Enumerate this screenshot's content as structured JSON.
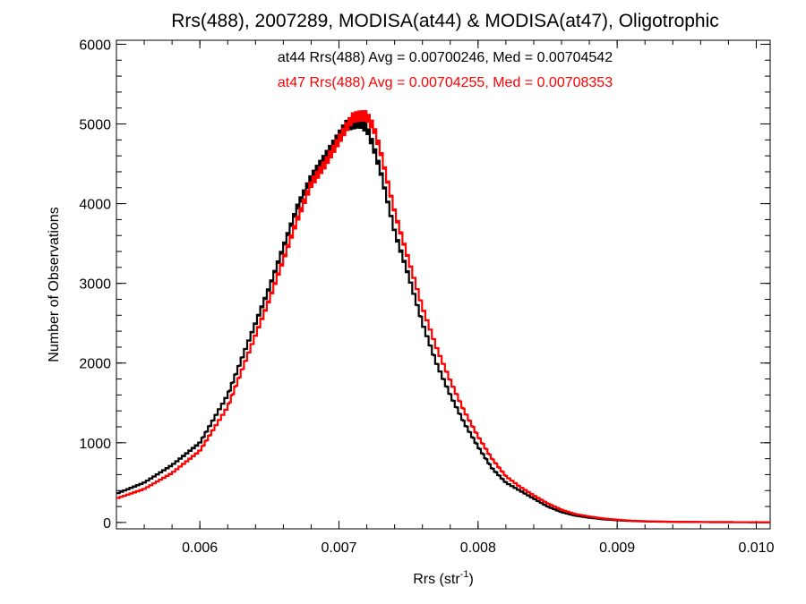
{
  "chart_data": {
    "type": "line",
    "title": "Rrs(488), 2007289, MODISA(at44) & MODISA(at47), Oligotrophic",
    "xlabel": "Rrs (str",
    "xlabel_sup": "-1",
    "xlabel_close": ")",
    "ylabel": "Number of Observations",
    "xlim": [
      0.0054,
      0.0101
    ],
    "ylim": [
      -80,
      6050
    ],
    "xticks": [
      0.006,
      0.007,
      0.008,
      0.009,
      0.01
    ],
    "xtick_labels": [
      "0.006",
      "0.007",
      "0.008",
      "0.009",
      "0.010"
    ],
    "yticks": [
      0,
      1000,
      2000,
      3000,
      4000,
      5000,
      6000
    ],
    "ytick_labels": [
      "0",
      "1000",
      "2000",
      "3000",
      "4000",
      "5000",
      "6000"
    ],
    "grid": false,
    "annotations": [
      {
        "text": "at44 Rrs(488) Avg = 0.00700246, Med = 0.00704542",
        "color": "#000000"
      },
      {
        "text": "at47 Rrs(488) Avg = 0.00704255, Med = 0.00708353",
        "color": "#ff0000"
      }
    ],
    "series": [
      {
        "name": "at44",
        "color": "#000000",
        "x": [
          0.0054,
          0.0056,
          0.0058,
          0.006,
          0.0062,
          0.0064,
          0.0065,
          0.0066,
          0.0067,
          0.0068,
          0.0069,
          0.007,
          0.00705,
          0.0071,
          0.00715,
          0.0072,
          0.00725,
          0.0073,
          0.0074,
          0.0075,
          0.0076,
          0.0077,
          0.0078,
          0.0079,
          0.008,
          0.0081,
          0.0082,
          0.0083,
          0.0084,
          0.0085,
          0.0086,
          0.0087,
          0.0088,
          0.0089,
          0.009,
          0.0091,
          0.0092,
          0.0093,
          0.0094,
          0.0095,
          0.0096,
          0.0098,
          0.01,
          0.0101
        ],
        "y": [
          360,
          500,
          720,
          1000,
          1600,
          2500,
          2950,
          3450,
          3950,
          4320,
          4580,
          4850,
          4980,
          5000,
          5020,
          4950,
          4700,
          4400,
          3650,
          3100,
          2500,
          2000,
          1600,
          1250,
          950,
          680,
          500,
          400,
          300,
          200,
          130,
          85,
          60,
          40,
          28,
          18,
          13,
          10,
          8,
          6,
          5,
          4,
          3,
          3
        ]
      },
      {
        "name": "at47",
        "color": "#ff0000",
        "x": [
          0.0054,
          0.0056,
          0.0058,
          0.006,
          0.0062,
          0.0064,
          0.0065,
          0.0066,
          0.0067,
          0.0068,
          0.0069,
          0.007,
          0.00705,
          0.0071,
          0.00715,
          0.0072,
          0.00725,
          0.0073,
          0.0074,
          0.0075,
          0.0076,
          0.0077,
          0.0078,
          0.0079,
          0.008,
          0.0081,
          0.0082,
          0.0083,
          0.0084,
          0.0085,
          0.0086,
          0.0087,
          0.0088,
          0.0089,
          0.009,
          0.0091,
          0.0092,
          0.0093,
          0.0094,
          0.0095,
          0.0096,
          0.0098,
          0.01,
          0.0101
        ],
        "y": [
          300,
          420,
          620,
          900,
          1450,
          2350,
          2800,
          3300,
          3800,
          4250,
          4500,
          4800,
          4950,
          5080,
          5100,
          5100,
          4950,
          4650,
          3900,
          3300,
          2700,
          2200,
          1780,
          1400,
          1080,
          800,
          580,
          450,
          340,
          240,
          160,
          105,
          75,
          50,
          35,
          22,
          16,
          12,
          9,
          7,
          5,
          4,
          3,
          3
        ]
      }
    ]
  }
}
